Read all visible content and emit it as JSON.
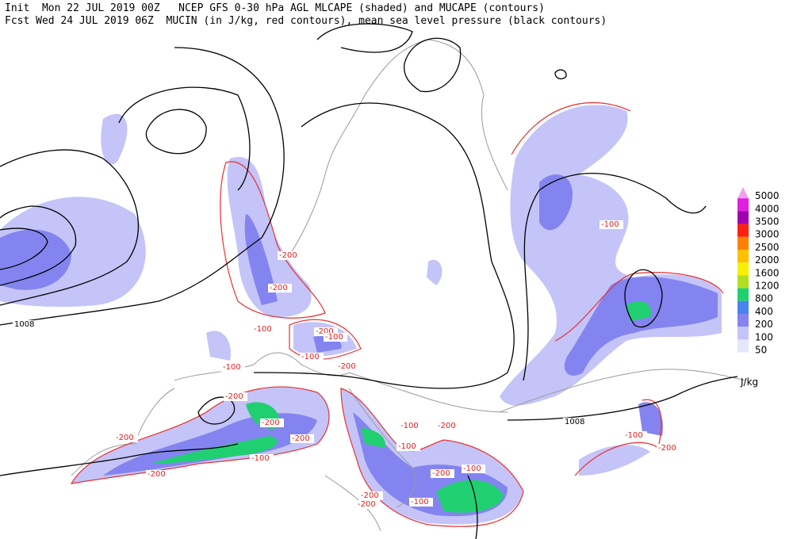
{
  "header": {
    "lines": [
      "Init  Mon 22 JUL 2019 00Z   NCEP GFS 0-30 hPa AGL MLCAPE (shaded) and MUCAPE (contours)",
      "Fcst Wed 24 JUL 2019 06Z  MUCIN (in J/kg, red contours), mean sea level pressure (black contours)"
    ]
  },
  "legend": {
    "unit": "J/kg",
    "levels": [
      {
        "value": 5000,
        "color": "#f0a0f0"
      },
      {
        "value": 4000,
        "color": "#e020e0"
      },
      {
        "value": 3500,
        "color": "#a000b0"
      },
      {
        "value": 3000,
        "color": "#ff2010"
      },
      {
        "value": 2500,
        "color": "#ff8000"
      },
      {
        "value": 2000,
        "color": "#ffc000"
      },
      {
        "value": 1600,
        "color": "#f8f000"
      },
      {
        "value": 1200,
        "color": "#b0e020"
      },
      {
        "value": 800,
        "color": "#20d070"
      },
      {
        "value": 400,
        "color": "#4a82f0"
      },
      {
        "value": 200,
        "color": "#8484f0"
      },
      {
        "value": 100,
        "color": "#c4c4f8"
      },
      {
        "value": 50,
        "color": "#e6e6fa"
      }
    ]
  },
  "contour_labels": {
    "pressure": [
      1008,
      1008
    ],
    "mucin": [
      -100,
      -200,
      -200,
      -100,
      -200,
      -100,
      -100,
      -200,
      -100,
      -200,
      -200,
      -200,
      -100,
      -200,
      -100,
      -100,
      -200,
      -200,
      -200,
      -100,
      -200,
      -100,
      -200,
      -100,
      -200
    ]
  }
}
